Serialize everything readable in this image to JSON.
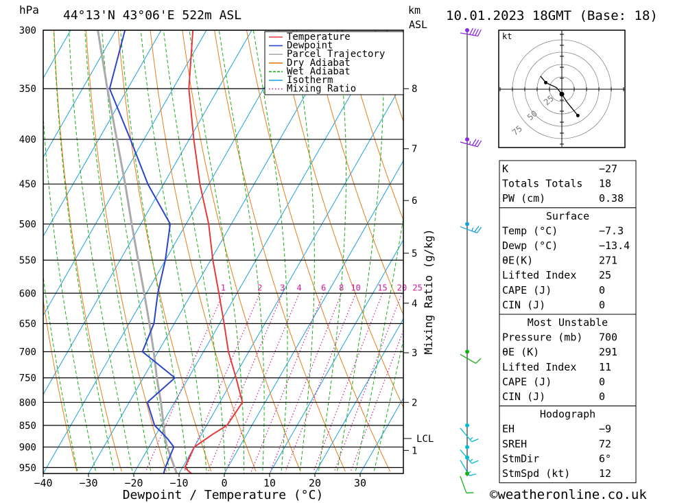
{
  "header": {
    "location": "44°13'N 43°06'E 522m ASL",
    "datetime": "10.01.2023 18GMT (Base: 18)",
    "pressure_unit": "hPa",
    "height_unit_km": "km",
    "height_unit_asl": "ASL"
  },
  "chart_data": {
    "type": "skew-t",
    "xlabel": "Dewpoint / Temperature (°C)",
    "ylabel": "Mixing Ratio (g/kg)",
    "xlim": [
      -40,
      40
    ],
    "ylim": [
      965,
      300
    ],
    "log_pressure_axis": true,
    "x_ticks": [
      -40,
      -30,
      -20,
      -10,
      0,
      10,
      20,
      30
    ],
    "pressure_ticks": [
      300,
      350,
      400,
      450,
      500,
      550,
      600,
      650,
      700,
      750,
      800,
      850,
      900,
      950
    ],
    "height_ticks": [
      {
        "label": "8",
        "p": 350
      },
      {
        "label": "7",
        "p": 410
      },
      {
        "label": "6",
        "p": 470
      },
      {
        "label": "5",
        "p": 540
      },
      {
        "label": "4",
        "p": 616
      },
      {
        "label": "3",
        "p": 702
      },
      {
        "label": "2",
        "p": 800
      },
      {
        "label": "1",
        "p": 908
      }
    ],
    "lcl": {
      "label": "LCL",
      "p": 880
    },
    "mixing_ratio_labels": [
      "1",
      "2",
      "3",
      "4",
      "6",
      "8",
      "10",
      "15",
      "20",
      "25"
    ],
    "legend": {
      "placement": "top-right",
      "entries": [
        {
          "label": "Temperature",
          "color": "#e8383a",
          "style": "solid"
        },
        {
          "label": "Dewpoint",
          "color": "#2a44cc",
          "style": "solid"
        },
        {
          "label": "Parcel Trajectory",
          "color": "#aaaaaa",
          "style": "solid"
        },
        {
          "label": "Dry Adiabat",
          "color": "#e87d18",
          "style": "solid"
        },
        {
          "label": "Wet Adiabat",
          "color": "#16b016",
          "style": "dashed"
        },
        {
          "label": "Isotherm",
          "color": "#1aa0e0",
          "style": "solid"
        },
        {
          "label": "Mixing Ratio",
          "color": "#d0189a",
          "style": "dotted"
        }
      ]
    },
    "temperature": [
      {
        "p": 965,
        "t": -7.3
      },
      {
        "p": 950,
        "t": -9.5
      },
      {
        "p": 900,
        "t": -10.0
      },
      {
        "p": 870,
        "t": -7.5
      },
      {
        "p": 850,
        "t": -5.5
      },
      {
        "p": 800,
        "t": -5.0
      },
      {
        "p": 750,
        "t": -9.5
      },
      {
        "p": 700,
        "t": -14.5
      },
      {
        "p": 650,
        "t": -19.0
      },
      {
        "p": 600,
        "t": -24.0
      },
      {
        "p": 550,
        "t": -29.5
      },
      {
        "p": 500,
        "t": -35.0
      },
      {
        "p": 450,
        "t": -42.0
      },
      {
        "p": 400,
        "t": -49.0
      },
      {
        "p": 350,
        "t": -56.5
      },
      {
        "p": 300,
        "t": -63.0
      }
    ],
    "dewpoint": [
      {
        "p": 965,
        "t": -13.4
      },
      {
        "p": 950,
        "t": -13.8
      },
      {
        "p": 900,
        "t": -14.5
      },
      {
        "p": 880,
        "t": -17.0
      },
      {
        "p": 850,
        "t": -21.5
      },
      {
        "p": 800,
        "t": -26.0
      },
      {
        "p": 750,
        "t": -23.0
      },
      {
        "p": 700,
        "t": -33.5
      },
      {
        "p": 650,
        "t": -34.5
      },
      {
        "p": 600,
        "t": -37.5
      },
      {
        "p": 550,
        "t": -40.0
      },
      {
        "p": 500,
        "t": -43.5
      },
      {
        "p": 450,
        "t": -53.5
      },
      {
        "p": 400,
        "t": -63.0
      },
      {
        "p": 350,
        "t": -74.0
      },
      {
        "p": 300,
        "t": -78.0
      }
    ],
    "parcel": [
      {
        "p": 965,
        "t": -10.5
      },
      {
        "p": 900,
        "t": -16.0
      },
      {
        "p": 880,
        "t": -17.5
      },
      {
        "p": 850,
        "t": -19.5
      },
      {
        "p": 800,
        "t": -23.0
      },
      {
        "p": 750,
        "t": -27.0
      },
      {
        "p": 700,
        "t": -31.0
      },
      {
        "p": 650,
        "t": -35.5
      },
      {
        "p": 600,
        "t": -40.5
      },
      {
        "p": 550,
        "t": -46.0
      },
      {
        "p": 500,
        "t": -52.0
      },
      {
        "p": 450,
        "t": -58.5
      },
      {
        "p": 400,
        "t": -66.0
      },
      {
        "p": 350,
        "t": -74.5
      },
      {
        "p": 300,
        "t": -84.0
      }
    ],
    "wind_barbs": [
      {
        "p": 300,
        "color": "#8a2be2",
        "dir": 280,
        "kt": 40
      },
      {
        "p": 400,
        "color": "#8a2be2",
        "dir": 285,
        "kt": 35
      },
      {
        "p": 500,
        "color": "#1aa0e0",
        "dir": 290,
        "kt": 25
      },
      {
        "p": 700,
        "color": "#16b016",
        "dir": 300,
        "kt": 10
      },
      {
        "p": 850,
        "color": "#00bcd4",
        "dir": 320,
        "kt": 15
      },
      {
        "p": 900,
        "color": "#00bcd4",
        "dir": 320,
        "kt": 15
      },
      {
        "p": 925,
        "color": "#00bcd4",
        "dir": 330,
        "kt": 15
      },
      {
        "p": 965,
        "color": "#16b016",
        "dir": 340,
        "kt": 10
      }
    ],
    "hodograph": {
      "unit": "kt",
      "ring_labels": [
        "25",
        "50",
        "75"
      ],
      "points": [
        {
          "u": -12,
          "v": 8
        },
        {
          "u": -9,
          "v": 4
        },
        {
          "u": -3,
          "v": 1
        },
        {
          "u": 0,
          "v": -3
        },
        {
          "u": 3,
          "v": -8
        },
        {
          "u": 9,
          "v": -16
        }
      ]
    }
  },
  "indices": {
    "top": [
      {
        "label": "K",
        "value": "-27"
      },
      {
        "label": "Totals Totals",
        "value": "18"
      },
      {
        "label": "PW (cm)",
        "value": "0.38"
      }
    ],
    "surface": {
      "title": "Surface",
      "rows": [
        {
          "label": "Temp (°C)",
          "value": "-7.3"
        },
        {
          "label": "Dewp (°C)",
          "value": "-13.4"
        },
        {
          "label": "θE(K)",
          "value": "271"
        },
        {
          "label": "Lifted Index",
          "value": "25"
        },
        {
          "label": "CAPE (J)",
          "value": "0"
        },
        {
          "label": "CIN (J)",
          "value": "0"
        }
      ]
    },
    "most_unstable": {
      "title": "Most Unstable",
      "rows": [
        {
          "label": "Pressure (mb)",
          "value": "700"
        },
        {
          "label": "θE (K)",
          "value": "291"
        },
        {
          "label": "Lifted Index",
          "value": "11"
        },
        {
          "label": "CAPE (J)",
          "value": "0"
        },
        {
          "label": "CIN (J)",
          "value": "0"
        }
      ]
    },
    "hodograph": {
      "title": "Hodograph",
      "rows": [
        {
          "label": "EH",
          "value": "-9"
        },
        {
          "label": "SREH",
          "value": "72"
        },
        {
          "label": "StmDir",
          "value": "6°"
        },
        {
          "label": "StmSpd (kt)",
          "value": "12"
        }
      ]
    }
  },
  "footer": {
    "copyright": "©weatheronline.co.uk"
  }
}
